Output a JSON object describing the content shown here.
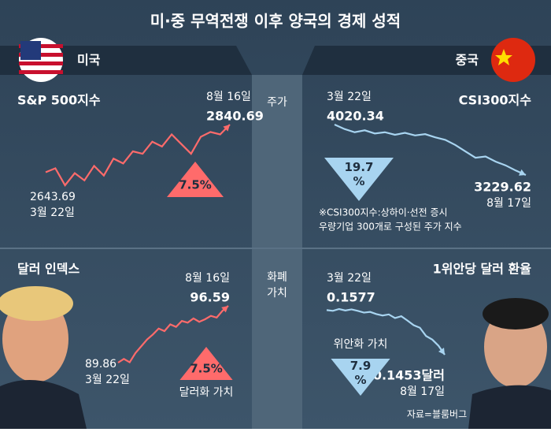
{
  "title": "미·중 무역전쟁 이후 양국의 경제 성적",
  "header": {
    "left": "미국",
    "right": "중국"
  },
  "sections": [
    {
      "lines": [
        "주가"
      ]
    },
    {
      "lines": [
        "화폐",
        "가치"
      ]
    }
  ],
  "note": [
    "※CSI300지수:상하이·선전 증시",
    "우량기업 300개로 구성된 주가 지수"
  ],
  "source": "자료=블룸버그",
  "chart_data": [
    {
      "type": "line",
      "title": "S&P 500지수",
      "start_date": "3월 22일",
      "start_value": 2643.69,
      "end_date": "8월 16일",
      "end_value": 2840.69,
      "direction": "up",
      "change_lines": [
        "7.5%"
      ],
      "color": "#ff6b6b",
      "values": [
        2643.69,
        2660,
        2590,
        2640,
        2610,
        2670,
        2630,
        2700,
        2680,
        2730,
        2720,
        2770,
        2750,
        2800,
        2760,
        2720,
        2790,
        2810,
        2800,
        2840.69
      ]
    },
    {
      "type": "line",
      "title": "CSI300지수",
      "start_date": "3월 22일",
      "start_value": 4020.34,
      "end_date": "8월 17일",
      "end_value": 3229.62,
      "direction": "down",
      "change_lines": [
        19.7,
        "%"
      ],
      "color": "#a8d4f0",
      "values": [
        4020.34,
        3950,
        3900,
        3930,
        3880,
        3900,
        3860,
        3890,
        3850,
        3870,
        3820,
        3780,
        3700,
        3600,
        3500,
        3520,
        3440,
        3380,
        3300,
        3229.62
      ]
    },
    {
      "type": "line",
      "title": "달러 인덱스",
      "start_date": "3월 22일",
      "start_value": 89.86,
      "end_date": "8월 16일",
      "end_value": 96.59,
      "direction": "up",
      "change_lines": [
        "7.5%"
      ],
      "change_caption": "달러화 가치",
      "color": "#ff6b6b",
      "values": [
        89.86,
        90.3,
        89.9,
        91.0,
        91.8,
        92.6,
        93.2,
        93.9,
        93.6,
        94.4,
        94.1,
        94.8,
        94.6,
        95.1,
        94.7,
        95.0,
        95.4,
        95.2,
        96.0,
        96.59
      ]
    },
    {
      "type": "line",
      "title": "1위안당 달러 환율",
      "start_date": "3월 22일",
      "start_value": 0.1577,
      "end_date": "8월 17일",
      "end_value": "0.1453달러",
      "direction": "down",
      "change_lines": [
        7.9,
        "%"
      ],
      "change_caption": "위안화 가치",
      "color": "#a8d4f0",
      "values": [
        0.1577,
        0.1575,
        0.158,
        0.1576,
        0.1579,
        0.1575,
        0.157,
        0.1572,
        0.1566,
        0.1562,
        0.1565,
        0.1555,
        0.156,
        0.1548,
        0.1535,
        0.1528,
        0.1505,
        0.1495,
        0.1478,
        0.1453
      ]
    }
  ]
}
